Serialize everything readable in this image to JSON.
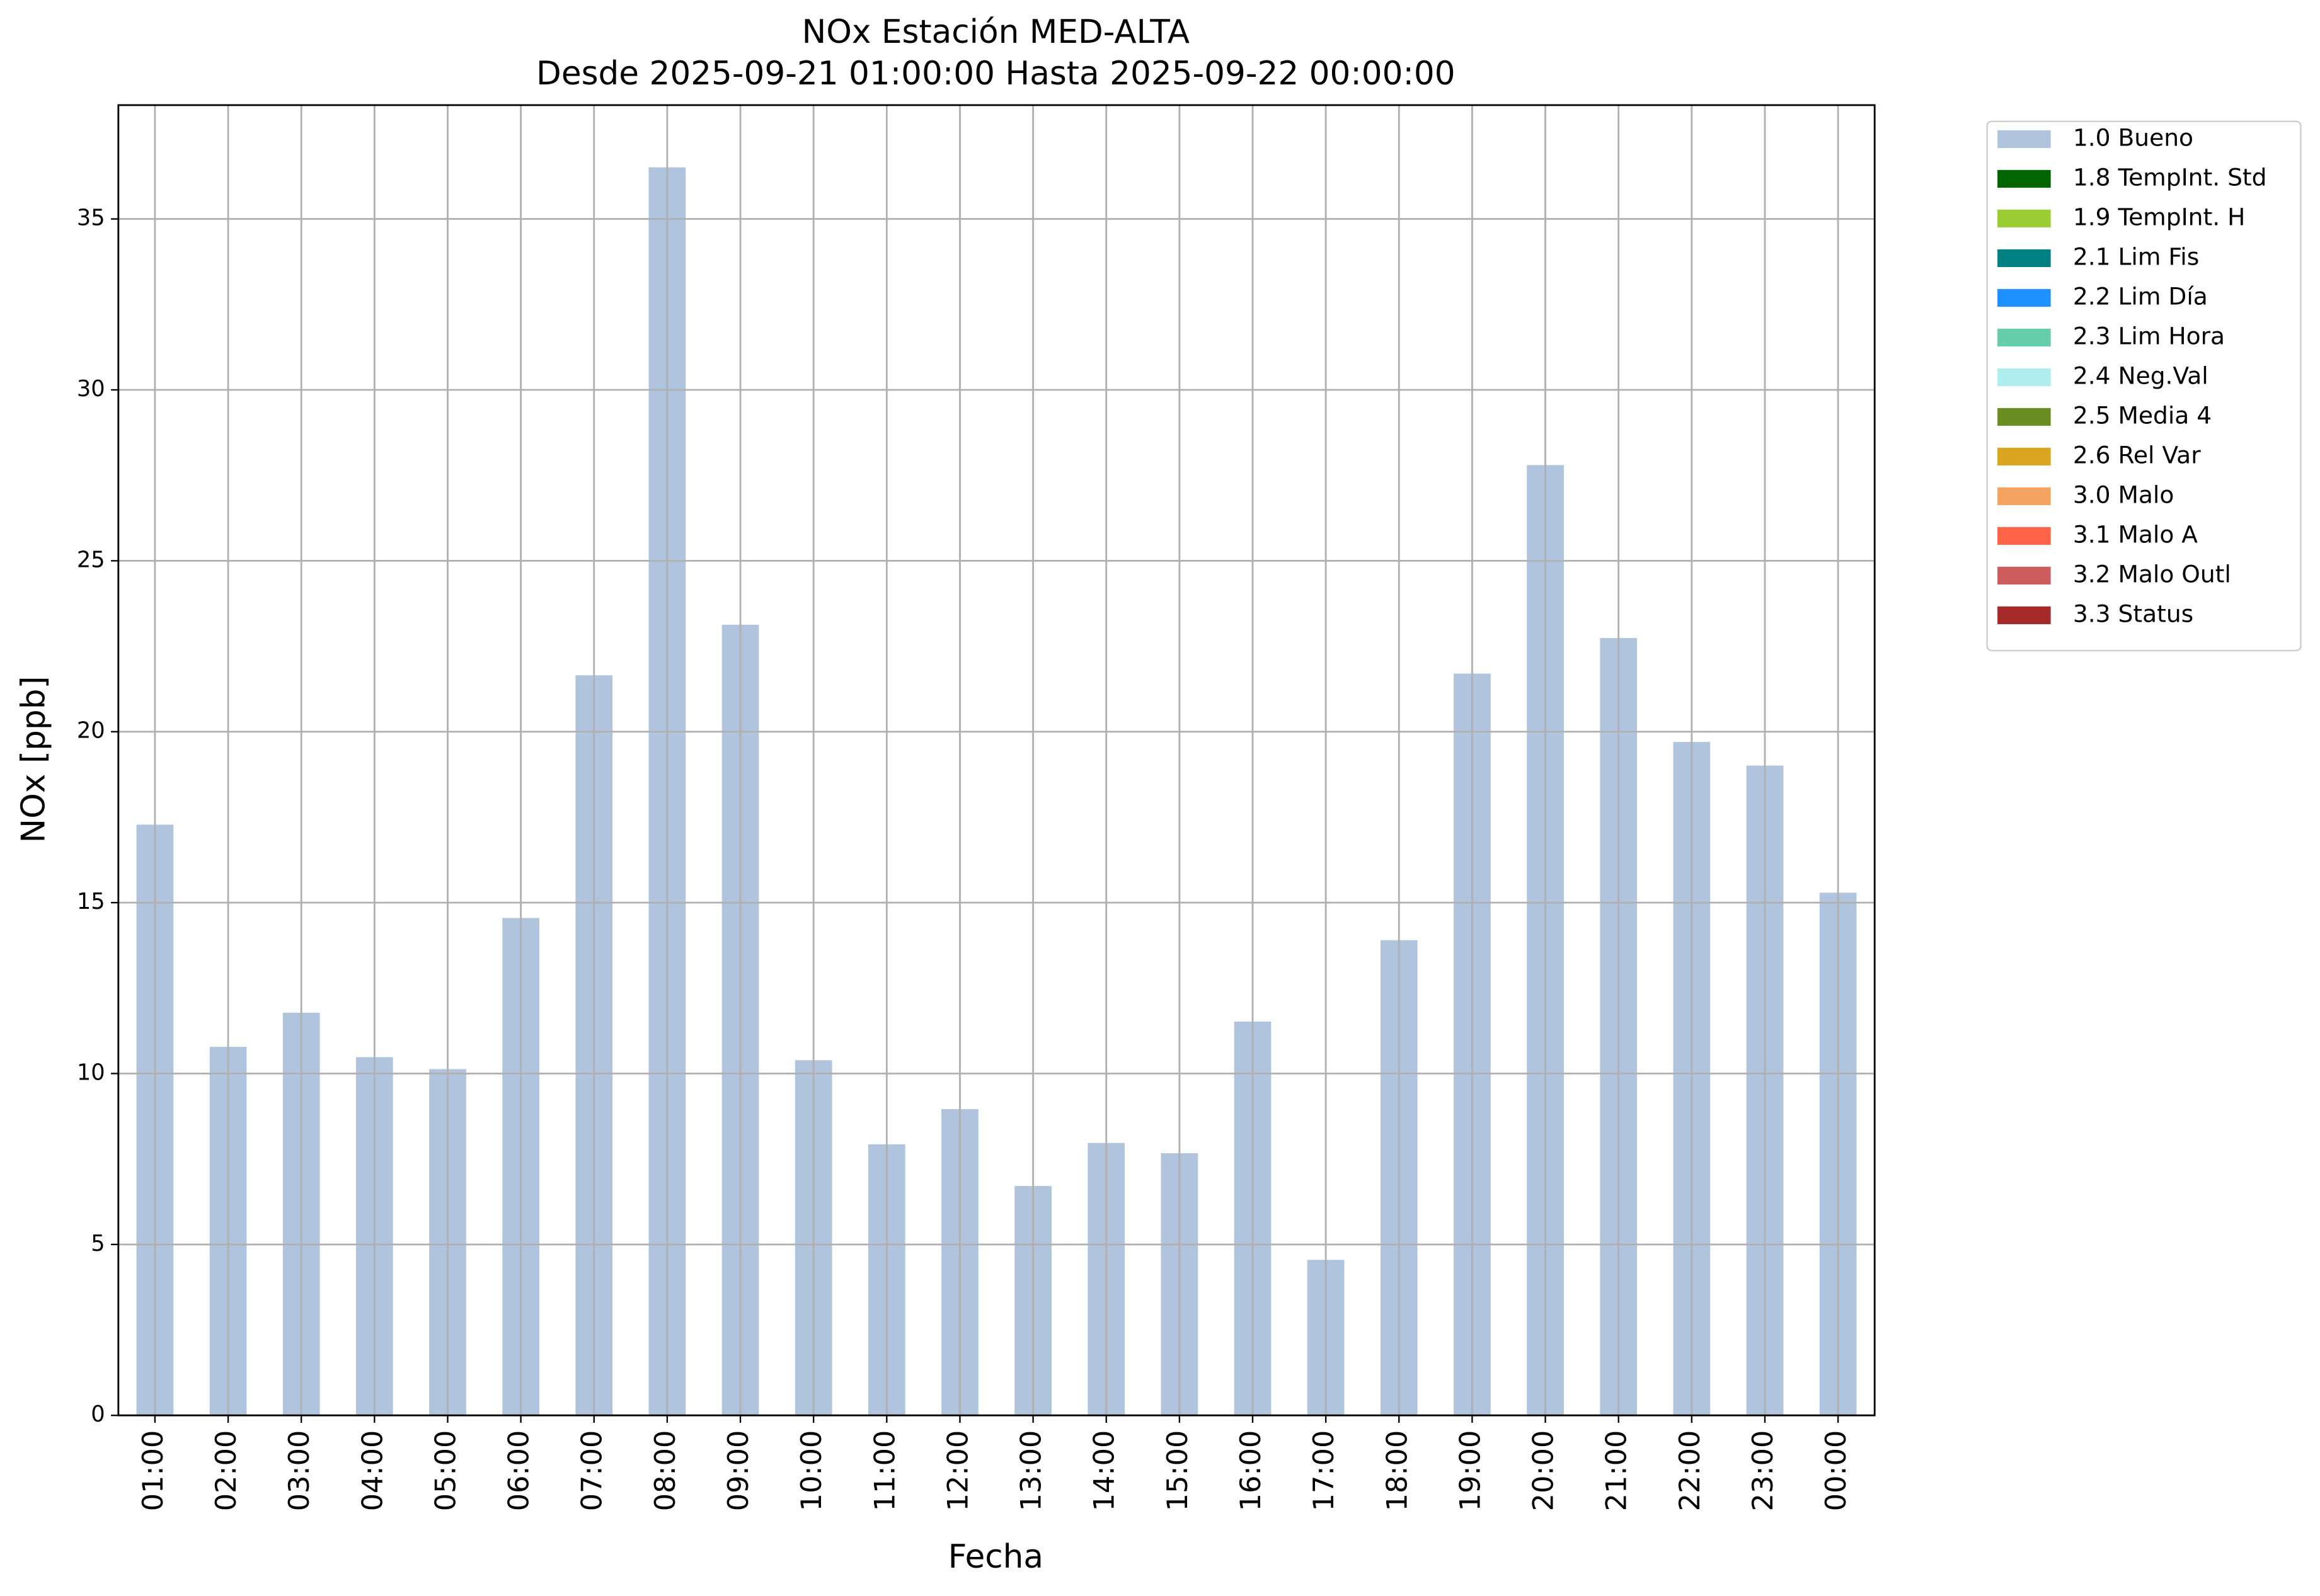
{
  "chart_data": {
    "type": "bar",
    "stacked": true,
    "title": "NOx Estación MED-ALTA",
    "subtitle": "Desde 2025-09-21 01:00:00 Hasta 2025-09-22 00:00:00",
    "x_label": "Fecha",
    "y_label": "NOx [ppb]",
    "categories": [
      "01:00",
      "02:00",
      "03:00",
      "04:00",
      "05:00",
      "06:00",
      "07:00",
      "08:00",
      "09:00",
      "10:00",
      "11:00",
      "12:00",
      "13:00",
      "14:00",
      "15:00",
      "16:00",
      "17:00",
      "18:00",
      "19:00",
      "20:00",
      "21:00",
      "22:00",
      "23:00",
      "00:00"
    ],
    "series": [
      {
        "name": "1.0 Bueno",
        "color": "#b0c4de",
        "values": [
          17.28,
          10.78,
          11.78,
          10.48,
          10.13,
          14.55,
          21.65,
          36.51,
          23.13,
          10.39,
          7.93,
          8.96,
          6.71,
          7.97,
          7.67,
          11.52,
          4.55,
          13.9,
          21.7,
          27.8,
          22.74,
          19.7,
          19.01,
          15.29
        ]
      },
      {
        "name": "1.8 TempInt. Std",
        "color": "#006400",
        "values": [
          0,
          0,
          0,
          0,
          0,
          0,
          0,
          0,
          0,
          0,
          0,
          0,
          0,
          0,
          0,
          0,
          0,
          0,
          0,
          0,
          0,
          0,
          0,
          0
        ]
      },
      {
        "name": "1.9 TempInt. H",
        "color": "#9acd32",
        "values": [
          0,
          0,
          0,
          0,
          0,
          0,
          0,
          0,
          0,
          0,
          0,
          0,
          0,
          0,
          0,
          0,
          0,
          0,
          0,
          0,
          0,
          0,
          0,
          0
        ]
      },
      {
        "name": "2.1 Lim Fis",
        "color": "#008080",
        "values": [
          0,
          0,
          0,
          0,
          0,
          0,
          0,
          0,
          0,
          0,
          0,
          0,
          0,
          0,
          0,
          0,
          0,
          0,
          0,
          0,
          0,
          0,
          0,
          0
        ]
      },
      {
        "name": "2.2 Lim Día",
        "color": "#1e90ff",
        "values": [
          0,
          0,
          0,
          0,
          0,
          0,
          0,
          0,
          0,
          0,
          0,
          0,
          0,
          0,
          0,
          0,
          0,
          0,
          0,
          0,
          0,
          0,
          0,
          0
        ]
      },
      {
        "name": "2.3 Lim Hora",
        "color": "#66cdaa",
        "values": [
          0,
          0,
          0,
          0,
          0,
          0,
          0,
          0,
          0,
          0,
          0,
          0,
          0,
          0,
          0,
          0,
          0,
          0,
          0,
          0,
          0,
          0,
          0,
          0
        ]
      },
      {
        "name": "2.4 Neg.Val",
        "color": "#afeeee",
        "values": [
          0,
          0,
          0,
          0,
          0,
          0,
          0,
          0,
          0,
          0,
          0,
          0,
          0,
          0,
          0,
          0,
          0,
          0,
          0,
          0,
          0,
          0,
          0,
          0
        ]
      },
      {
        "name": "2.5 Media 4",
        "color": "#6b8e23",
        "values": [
          0,
          0,
          0,
          0,
          0,
          0,
          0,
          0,
          0,
          0,
          0,
          0,
          0,
          0,
          0,
          0,
          0,
          0,
          0,
          0,
          0,
          0,
          0,
          0
        ]
      },
      {
        "name": "2.6 Rel Var",
        "color": "#daa520",
        "values": [
          0,
          0,
          0,
          0,
          0,
          0,
          0,
          0,
          0,
          0,
          0,
          0,
          0,
          0,
          0,
          0,
          0,
          0,
          0,
          0,
          0,
          0,
          0,
          0
        ]
      },
      {
        "name": "3.0 Malo",
        "color": "#f4a460",
        "values": [
          0,
          0,
          0,
          0,
          0,
          0,
          0,
          0,
          0,
          0,
          0,
          0,
          0,
          0,
          0,
          0,
          0,
          0,
          0,
          0,
          0,
          0,
          0,
          0
        ]
      },
      {
        "name": "3.1 Malo A",
        "color": "#ff6347",
        "values": [
          0,
          0,
          0,
          0,
          0,
          0,
          0,
          0,
          0,
          0,
          0,
          0,
          0,
          0,
          0,
          0,
          0,
          0,
          0,
          0,
          0,
          0,
          0,
          0
        ]
      },
      {
        "name": "3.2 Malo Outl",
        "color": "#cd5c5c",
        "values": [
          0,
          0,
          0,
          0,
          0,
          0,
          0,
          0,
          0,
          0,
          0,
          0,
          0,
          0,
          0,
          0,
          0,
          0,
          0,
          0,
          0,
          0,
          0,
          0
        ]
      },
      {
        "name": "3.3 Status",
        "color": "#a52a2a",
        "values": [
          0,
          0,
          0,
          0,
          0,
          0,
          0,
          0,
          0,
          0,
          0,
          0,
          0,
          0,
          0,
          0,
          0,
          0,
          0,
          0,
          0,
          0,
          0,
          0
        ]
      }
    ],
    "ylim": [
      0,
      38.33
    ],
    "yticks": [
      0,
      5,
      10,
      15,
      20,
      25,
      30,
      35
    ],
    "grid": true,
    "legend": "outside-right"
  }
}
